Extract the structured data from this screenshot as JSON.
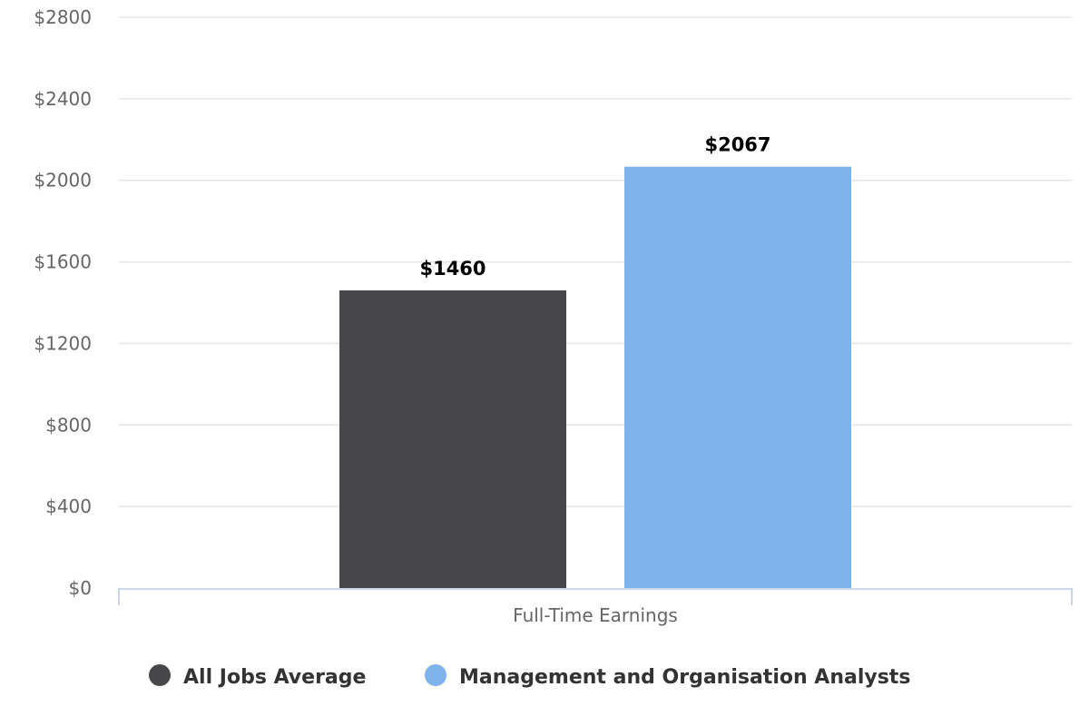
{
  "chart_data": {
    "type": "bar",
    "categories": [
      "Full-Time Earnings"
    ],
    "series": [
      {
        "name": "All Jobs Average",
        "values": [
          1460
        ],
        "color": "#46464b",
        "label": "$1460"
      },
      {
        "name": "Management and Organisation Analysts",
        "values": [
          2067
        ],
        "color": "#7cb4eb",
        "label": "$2067"
      }
    ],
    "ylim": [
      0,
      2800
    ],
    "yticks": [
      0,
      400,
      800,
      1200,
      1600,
      2000,
      2400,
      2800
    ],
    "ytick_labels": [
      "$0",
      "$400",
      "$800",
      "$1200",
      "$1600",
      "$2000",
      "$2400",
      "$2800"
    ],
    "grid": true,
    "legend_position": "bottom-left"
  }
}
